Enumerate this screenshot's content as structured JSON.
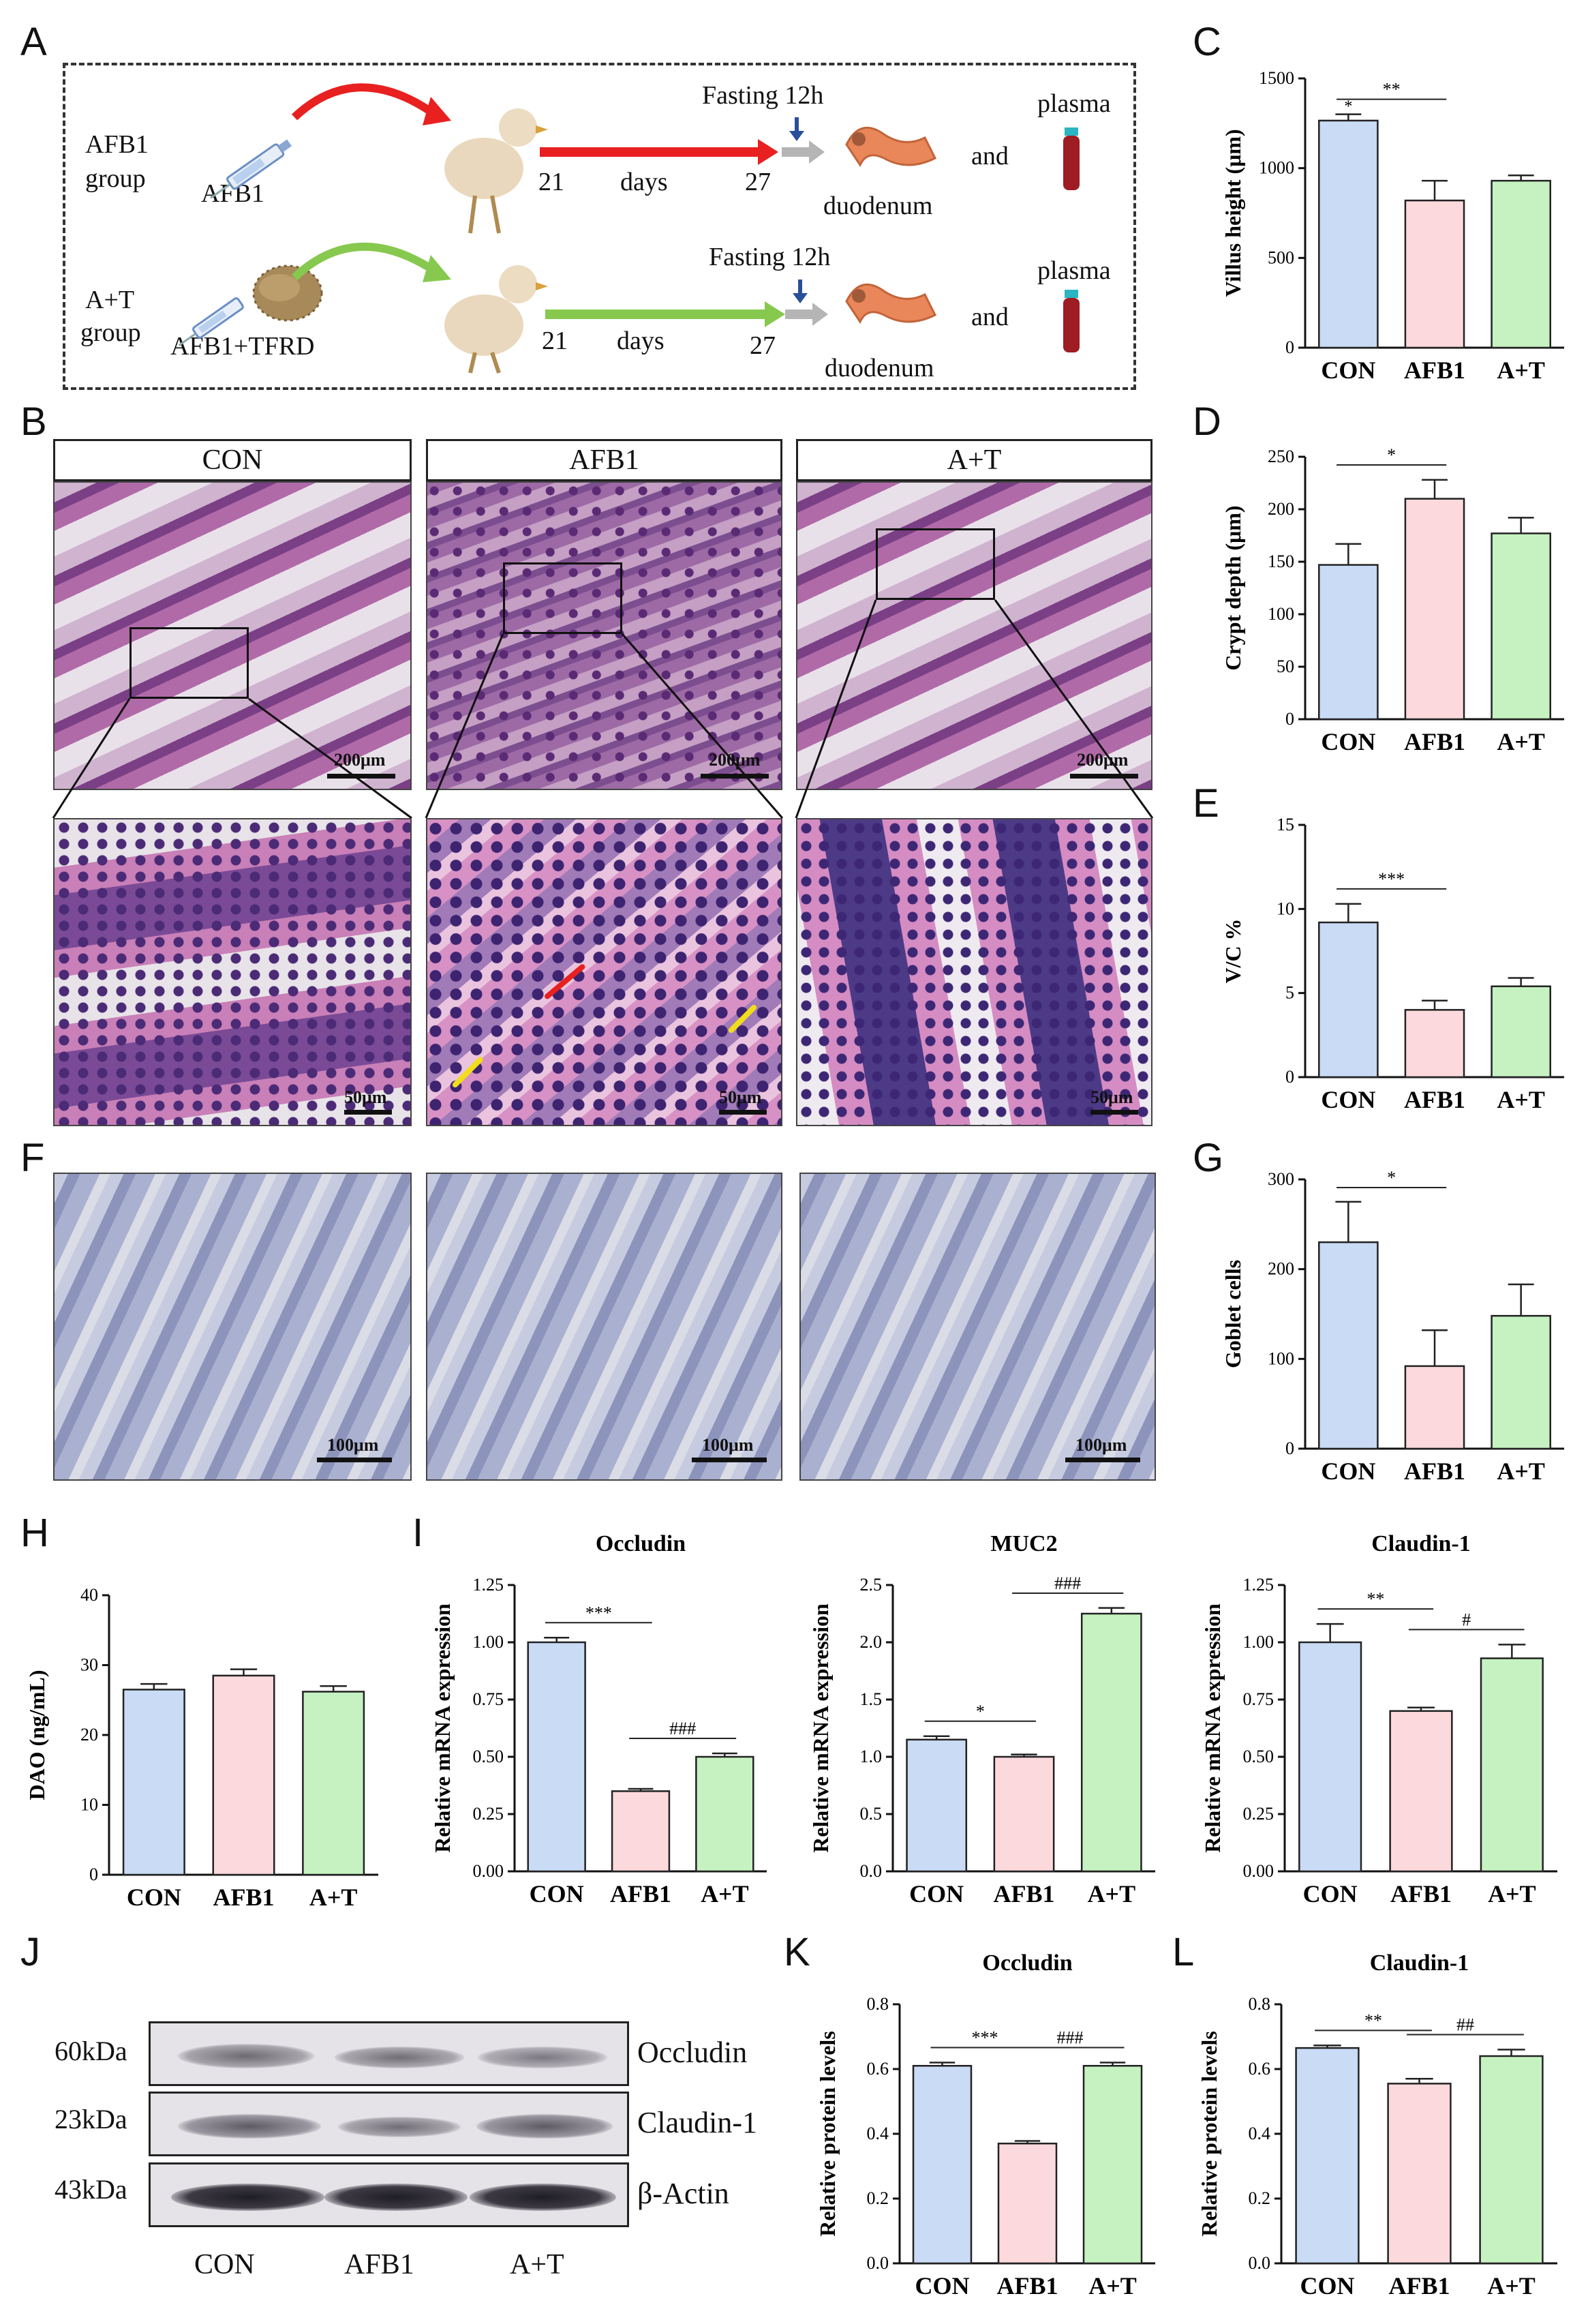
{
  "panel_letters": {
    "A": "A",
    "B": "B",
    "C": "C",
    "D": "D",
    "E": "E",
    "F": "F",
    "G": "G",
    "H": "H",
    "I": "I",
    "J": "J",
    "K": "K",
    "L": "L"
  },
  "schematic": {
    "afb1_group": "AFB1\ngroup",
    "afb1_group_l1": "AFB1",
    "afb1_group_l2": "group",
    "afb1_drug": "AFB1",
    "at_group_l1": "A+T",
    "at_group_l2": "group",
    "at_drug": "AFB1+TFRD",
    "fasting_1": "Fasting 12h",
    "fasting_2": "Fasting 12h",
    "day_start_1": "21",
    "days_1": "days",
    "day_end_1": "27",
    "day_start_2": "21",
    "days_2": "days",
    "day_end_2": "27",
    "organ_1": "duodenum",
    "organ_2": "duodenum",
    "and_1": "and",
    "and_2": "and",
    "plasma_1": "plasma",
    "plasma_2": "plasma",
    "colors": {
      "afb1_arrow": "#e8201f",
      "at_arrow": "#86c94e",
      "grey_arrow": "#b5b5b5",
      "blue_arrow": "#2a4f9a"
    }
  },
  "histology": {
    "headers": [
      "CON",
      "AFB1",
      "A+T"
    ],
    "scale_b_top": "200μm",
    "scale_b_bottom": "50μm",
    "scale_f": "100μm"
  },
  "colors": {
    "con": "#c9dbf5",
    "afb1": "#fcd9dc",
    "at": "#c6f2c2",
    "edge": "#222222"
  },
  "chart_data": [
    {
      "id": "C",
      "type": "bar",
      "categories": [
        "CON",
        "AFB1",
        "A+T"
      ],
      "values": [
        1265,
        820,
        930
      ],
      "errors": [
        35,
        110,
        30
      ],
      "ylabel": "Villus height (μm)",
      "ylim": [
        0,
        1500
      ],
      "yticks": [
        0,
        500,
        1000,
        1500
      ],
      "sig": [
        {
          "from": 0,
          "to": 1,
          "text": "**"
        }
      ],
      "extra_marks": [
        {
          "bar": 0,
          "text": "*"
        }
      ]
    },
    {
      "id": "D",
      "type": "bar",
      "categories": [
        "CON",
        "AFB1",
        "A+T"
      ],
      "values": [
        147,
        210,
        177
      ],
      "errors": [
        20,
        18,
        15
      ],
      "ylabel": "Crypt depth (μm)",
      "ylim": [
        0,
        250
      ],
      "yticks": [
        0,
        50,
        100,
        150,
        200,
        250
      ],
      "sig": [
        {
          "from": 0,
          "to": 1,
          "text": "*"
        }
      ]
    },
    {
      "id": "E",
      "type": "bar",
      "categories": [
        "CON",
        "AFB1",
        "A+T"
      ],
      "values": [
        9.2,
        4.0,
        5.4
      ],
      "errors": [
        1.1,
        0.55,
        0.5
      ],
      "ylabel": "V/C %",
      "ylim": [
        0,
        15
      ],
      "yticks": [
        0,
        5,
        10,
        15
      ],
      "sig": [
        {
          "from": 0,
          "to": 1,
          "text": "***"
        }
      ]
    },
    {
      "id": "G",
      "type": "bar",
      "categories": [
        "CON",
        "AFB1",
        "A+T"
      ],
      "values": [
        230,
        92,
        148
      ],
      "errors": [
        45,
        40,
        35
      ],
      "ylabel": "Goblet cells",
      "ylim": [
        0,
        300
      ],
      "yticks": [
        0,
        100,
        200,
        300
      ],
      "sig": [
        {
          "from": 0,
          "to": 1,
          "text": "*"
        }
      ]
    },
    {
      "id": "H",
      "type": "bar",
      "categories": [
        "CON",
        "AFB1",
        "A+T"
      ],
      "values": [
        26.5,
        28.5,
        26.2
      ],
      "errors": [
        0.8,
        0.9,
        0.8
      ],
      "ylabel": "DAO (ng/mL)",
      "ylim": [
        0,
        40
      ],
      "yticks": [
        0,
        10,
        20,
        30,
        40
      ],
      "sig": []
    },
    {
      "id": "I1",
      "type": "bar",
      "title": "Occludin",
      "categories": [
        "CON",
        "AFB1",
        "A+T"
      ],
      "values": [
        1.0,
        0.35,
        0.5
      ],
      "errors": [
        0.02,
        0.01,
        0.015
      ],
      "ylabel": "Relative mRNA expression",
      "ylim": [
        0,
        1.25
      ],
      "yticks": [
        0.0,
        0.25,
        0.5,
        0.75,
        1.0,
        1.25
      ],
      "decimals": 2,
      "sig": [
        {
          "from": 0,
          "to": 1,
          "text": "***"
        },
        {
          "from": 1,
          "to": 2,
          "text": "###"
        }
      ]
    },
    {
      "id": "I2",
      "type": "bar",
      "title": "MUC2",
      "categories": [
        "CON",
        "AFB1",
        "A+T"
      ],
      "values": [
        1.15,
        1.0,
        2.25
      ],
      "errors": [
        0.03,
        0.02,
        0.05
      ],
      "ylabel": "Relative mRNA expression",
      "ylim": [
        0,
        2.5
      ],
      "yticks": [
        0.0,
        0.5,
        1.0,
        1.5,
        2.0,
        2.5
      ],
      "decimals": 1,
      "sig": [
        {
          "from": 0,
          "to": 1,
          "text": "*"
        },
        {
          "from": 1,
          "to": 2,
          "text": "###"
        }
      ]
    },
    {
      "id": "I3",
      "type": "bar",
      "title": "Claudin-1",
      "categories": [
        "CON",
        "AFB1",
        "A+T"
      ],
      "values": [
        1.0,
        0.7,
        0.93
      ],
      "errors": [
        0.08,
        0.015,
        0.06
      ],
      "ylabel": "Relative mRNA expression",
      "ylim": [
        0,
        1.25
      ],
      "yticks": [
        0.0,
        0.25,
        0.5,
        0.75,
        1.0,
        1.25
      ],
      "decimals": 2,
      "sig": [
        {
          "from": 0,
          "to": 1,
          "text": "**"
        },
        {
          "from": 1,
          "to": 2,
          "text": "#"
        }
      ]
    },
    {
      "id": "K",
      "type": "bar",
      "title": "Occludin",
      "categories": [
        "CON",
        "AFB1",
        "A+T"
      ],
      "values": [
        0.61,
        0.37,
        0.61
      ],
      "errors": [
        0.01,
        0.008,
        0.01
      ],
      "ylabel": "Relative protein levels",
      "ylim": [
        0,
        0.8
      ],
      "yticks": [
        0.0,
        0.2,
        0.4,
        0.6,
        0.8
      ],
      "decimals": 1,
      "sig": [
        {
          "from": 0,
          "to": 1,
          "text": "***"
        },
        {
          "from": 1,
          "to": 2,
          "text": "###"
        }
      ]
    },
    {
      "id": "L",
      "type": "bar",
      "title": "Claudin-1",
      "categories": [
        "CON",
        "AFB1",
        "A+T"
      ],
      "values": [
        0.665,
        0.555,
        0.64
      ],
      "errors": [
        0.008,
        0.015,
        0.02
      ],
      "ylabel": "Relative protein levels",
      "ylim": [
        0,
        0.8
      ],
      "yticks": [
        0.0,
        0.2,
        0.4,
        0.6,
        0.8
      ],
      "decimals": 1,
      "sig": [
        {
          "from": 0,
          "to": 1,
          "text": "**"
        },
        {
          "from": 1,
          "to": 2,
          "text": "##"
        }
      ]
    }
  ],
  "western": {
    "kda": [
      "60kDa",
      "23kDa",
      "43kDa"
    ],
    "proteins": [
      "Occludin",
      "Claudin-1",
      "β-Actin"
    ],
    "categories": [
      "CON",
      "AFB1",
      "A+T"
    ]
  }
}
